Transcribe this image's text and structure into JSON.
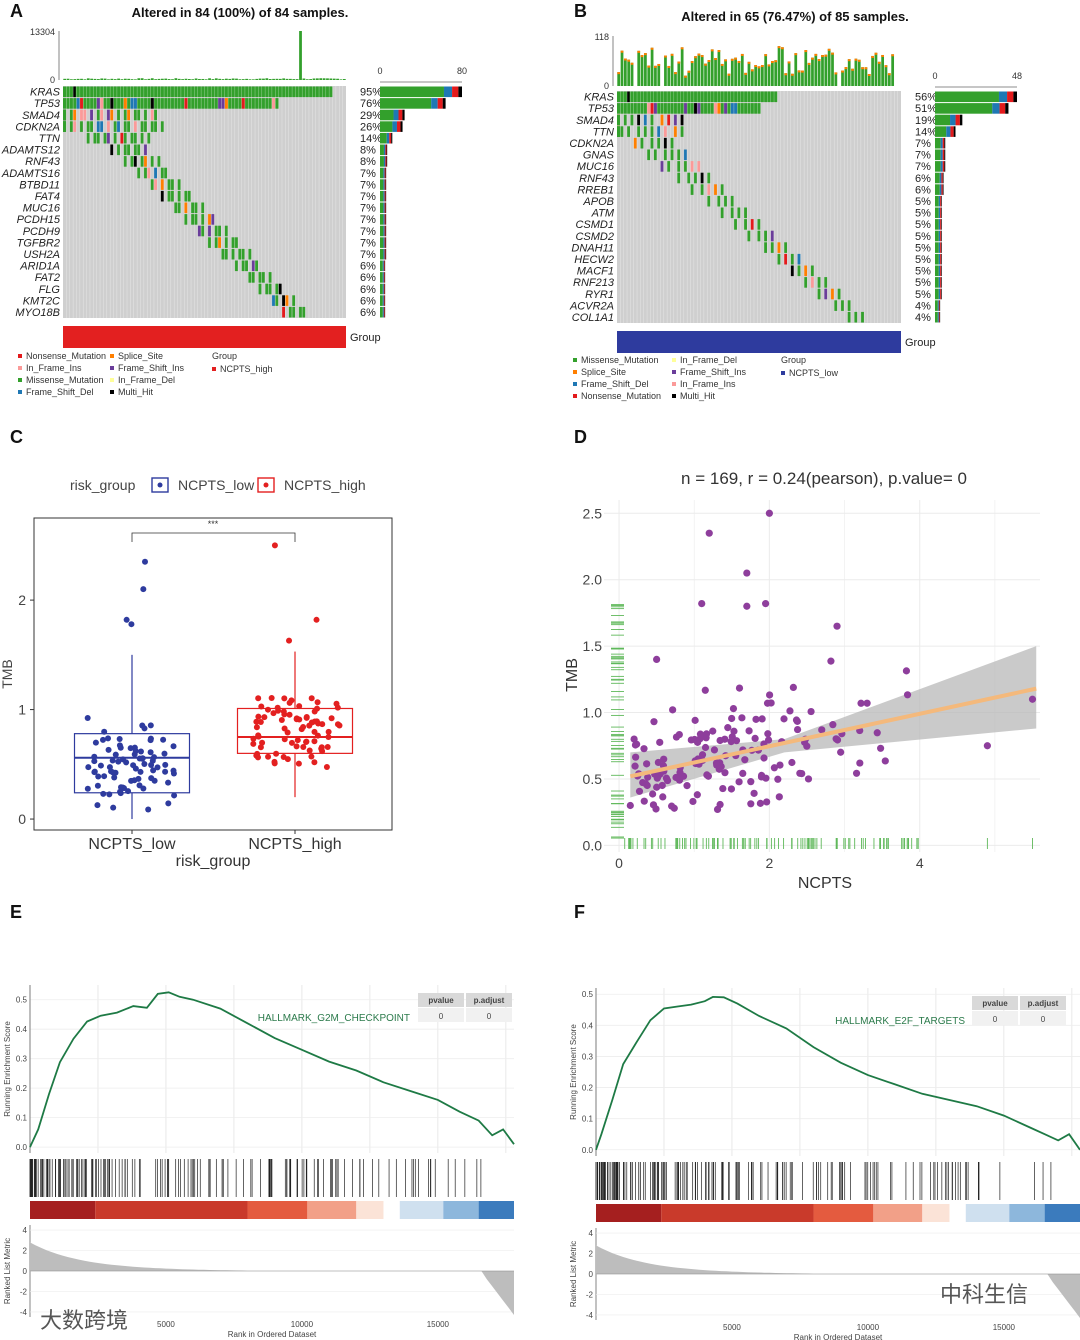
{
  "panels": {
    "A": "A",
    "B": "B",
    "C": "C",
    "D": "D",
    "E": "E",
    "F": "F"
  },
  "colors": {
    "Missense_Mutation": "#33a02c",
    "Nonsense_Mutation": "#e31a1c",
    "Frame_Shift_Del": "#1f78b4",
    "Frame_Shift_Ins": "#6a3d9a",
    "In_Frame_Del": "#ffff99",
    "In_Frame_Ins": "#fb9a99",
    "Splice_Site": "#ff7f00",
    "Multi_Hit": "#000000",
    "NCPTS_high": "#e32020",
    "NCPTS_low": "#2e3b9e",
    "grey": "#cfcfcf",
    "green_curve": "#1e7a45"
  },
  "chart_data": [
    {
      "id": "A",
      "type": "oncoplot",
      "title": "Altered in 84 (100%) of 84 samples.",
      "tmb_axis": [
        "13304",
        "0"
      ],
      "freq_axis": [
        "0",
        "80"
      ],
      "genes": [
        {
          "gene": "KRAS",
          "pct": "95%",
          "freq": 80
        },
        {
          "gene": "TP53",
          "pct": "76%",
          "freq": 64
        },
        {
          "gene": "SMAD4",
          "pct": "29%",
          "freq": 24
        },
        {
          "gene": "CDKN2A",
          "pct": "26%",
          "freq": 22
        },
        {
          "gene": "TTN",
          "pct": "14%",
          "freq": 12
        },
        {
          "gene": "ADAMTS12",
          "pct": "8%",
          "freq": 7
        },
        {
          "gene": "RNF43",
          "pct": "8%",
          "freq": 7
        },
        {
          "gene": "ADAMTS16",
          "pct": "7%",
          "freq": 6
        },
        {
          "gene": "BTBD11",
          "pct": "7%",
          "freq": 6
        },
        {
          "gene": "FAT4",
          "pct": "7%",
          "freq": 6
        },
        {
          "gene": "MUC16",
          "pct": "7%",
          "freq": 6
        },
        {
          "gene": "PCDH15",
          "pct": "7%",
          "freq": 6
        },
        {
          "gene": "PCDH9",
          "pct": "7%",
          "freq": 6
        },
        {
          "gene": "TGFBR2",
          "pct": "7%",
          "freq": 6
        },
        {
          "gene": "USH2A",
          "pct": "7%",
          "freq": 6
        },
        {
          "gene": "ARID1A",
          "pct": "6%",
          "freq": 5
        },
        {
          "gene": "FAT2",
          "pct": "6%",
          "freq": 5
        },
        {
          "gene": "FLG",
          "pct": "6%",
          "freq": 5
        },
        {
          "gene": "KMT2C",
          "pct": "6%",
          "freq": 5
        },
        {
          "gene": "MYO18B",
          "pct": "6%",
          "freq": 5
        }
      ],
      "group_label": "Group",
      "legend": [
        [
          "Nonsense_Mutation",
          "Splice_Site"
        ],
        [
          "In_Frame_Ins",
          "Frame_Shift_Ins"
        ],
        [
          "Missense_Mutation",
          "In_Frame_Del"
        ],
        [
          "Frame_Shift_Del",
          "Multi_Hit"
        ]
      ],
      "group_legend_title": "Group",
      "group_legend": "NCPTS_high"
    },
    {
      "id": "B",
      "type": "oncoplot",
      "title": "Altered in 65 (76.47%) of 85 samples.",
      "tmb_axis": [
        "118",
        "0"
      ],
      "freq_axis": [
        "0",
        "48"
      ],
      "genes": [
        {
          "gene": "KRAS",
          "pct": "56%",
          "freq": 48
        },
        {
          "gene": "TP53",
          "pct": "51%",
          "freq": 43
        },
        {
          "gene": "SMAD4",
          "pct": "19%",
          "freq": 16
        },
        {
          "gene": "TTN",
          "pct": "14%",
          "freq": 12
        },
        {
          "gene": "CDKN2A",
          "pct": "7%",
          "freq": 6
        },
        {
          "gene": "GNAS",
          "pct": "7%",
          "freq": 6
        },
        {
          "gene": "MUC16",
          "pct": "7%",
          "freq": 6
        },
        {
          "gene": "RNF43",
          "pct": "6%",
          "freq": 5
        },
        {
          "gene": "RREB1",
          "pct": "6%",
          "freq": 5
        },
        {
          "gene": "APOB",
          "pct": "5%",
          "freq": 4
        },
        {
          "gene": "ATM",
          "pct": "5%",
          "freq": 4
        },
        {
          "gene": "CSMD1",
          "pct": "5%",
          "freq": 4
        },
        {
          "gene": "CSMD2",
          "pct": "5%",
          "freq": 4
        },
        {
          "gene": "DNAH11",
          "pct": "5%",
          "freq": 4
        },
        {
          "gene": "HECW2",
          "pct": "5%",
          "freq": 4
        },
        {
          "gene": "MACF1",
          "pct": "5%",
          "freq": 4
        },
        {
          "gene": "RNF213",
          "pct": "5%",
          "freq": 4
        },
        {
          "gene": "RYR1",
          "pct": "5%",
          "freq": 4
        },
        {
          "gene": "ACVR2A",
          "pct": "4%",
          "freq": 3
        },
        {
          "gene": "COL1A1",
          "pct": "4%",
          "freq": 3
        }
      ],
      "group_label": "Group",
      "legend": [
        [
          "Missense_Mutation",
          "In_Frame_Del"
        ],
        [
          "Splice_Site",
          "Frame_Shift_Ins"
        ],
        [
          "Frame_Shift_Del",
          "In_Frame_Ins"
        ],
        [
          "Nonsense_Mutation",
          "Multi_Hit"
        ]
      ],
      "group_legend_title": "Group",
      "group_legend": "NCPTS_low"
    },
    {
      "id": "C",
      "type": "box",
      "legend_title": "risk_group",
      "categories": [
        "NCPTS_low",
        "NCPTS_high"
      ],
      "xlabel": "risk_group",
      "ylabel": "TMB",
      "yticks": [
        "0",
        "1",
        "2"
      ],
      "ylim": [
        -0.1,
        2.75
      ],
      "significance": "***",
      "boxes": [
        {
          "name": "NCPTS_low",
          "q1": 0.24,
          "median": 0.56,
          "q3": 0.78,
          "lo": 0.0,
          "hi": 1.5
        },
        {
          "name": "NCPTS_high",
          "q1": 0.6,
          "median": 0.75,
          "q3": 1.01,
          "lo": 0.2,
          "hi": 1.53
        }
      ],
      "outliers": [
        {
          "group": "NCPTS_low",
          "y": 2.35
        },
        {
          "group": "NCPTS_low",
          "y": 2.1
        },
        {
          "group": "NCPTS_low",
          "y": 1.82
        },
        {
          "group": "NCPTS_low",
          "y": 1.78
        },
        {
          "group": "NCPTS_high",
          "y": 2.5
        },
        {
          "group": "NCPTS_high",
          "y": 1.82
        },
        {
          "group": "NCPTS_high",
          "y": 1.63
        }
      ]
    },
    {
      "id": "D",
      "type": "scatter",
      "title": "n = 169, r = 0.24(pearson), p.value= 0",
      "xlabel": "NCPTS",
      "ylabel": "TMB",
      "xticks": [
        "0",
        "2",
        "4"
      ],
      "yticks": [
        "0.0",
        "0.5",
        "1.0",
        "1.5",
        "2.0",
        "2.5"
      ],
      "xlim": [
        -0.2,
        5.6
      ],
      "ylim": [
        -0.05,
        2.6
      ],
      "fit": {
        "x0": 0.15,
        "y0": 0.52,
        "x1": 5.55,
        "y1": 1.18
      },
      "highlight_points": [
        {
          "x": 1.2,
          "y": 2.35
        },
        {
          "x": 2.0,
          "y": 2.5
        },
        {
          "x": 1.7,
          "y": 2.05
        },
        {
          "x": 1.7,
          "y": 1.8
        },
        {
          "x": 1.95,
          "y": 1.82
        },
        {
          "x": 1.1,
          "y": 1.82
        },
        {
          "x": 0.5,
          "y": 1.4
        },
        {
          "x": 2.9,
          "y": 1.65
        },
        {
          "x": 5.5,
          "y": 1.1
        },
        {
          "x": 4.9,
          "y": 0.75
        },
        {
          "x": 3.3,
          "y": 1.07
        },
        {
          "x": 0.15,
          "y": 0.3
        }
      ]
    },
    {
      "id": "E",
      "type": "line",
      "label": "HALLMARK_G2M_CHECKPOINT",
      "ylabel": "Running Enrichment Score",
      "ylabel2": "Ranked List Metric",
      "xlabel": "Rank in Ordered Dataset",
      "yticks": [
        "0.0",
        "0.1",
        "0.2",
        "0.3",
        "0.4",
        "0.5"
      ],
      "xticks": [
        "5000",
        "10000",
        "15000"
      ],
      "ranked_yticks": [
        "4",
        "2",
        "0",
        "-2",
        "-4"
      ],
      "xlim": [
        0,
        17800
      ],
      "ylim": [
        -0.02,
        0.55
      ],
      "table": {
        "headers": [
          "pvalue",
          "p.adjust"
        ],
        "values": [
          "0",
          "0"
        ]
      },
      "curve_x": [
        0,
        300,
        700,
        1100,
        1600,
        2100,
        2600,
        3200,
        3800,
        4300,
        4700,
        5100,
        5500,
        6000,
        7000,
        8000,
        9000,
        10000,
        11000,
        12000,
        13000,
        14000,
        15000,
        15800,
        16500,
        17000,
        17400,
        17800
      ],
      "curve_y": [
        0.0,
        0.06,
        0.18,
        0.28,
        0.36,
        0.42,
        0.44,
        0.45,
        0.47,
        0.48,
        0.51,
        0.52,
        0.51,
        0.5,
        0.47,
        0.42,
        0.37,
        0.33,
        0.29,
        0.26,
        0.22,
        0.19,
        0.16,
        0.12,
        0.09,
        0.04,
        0.06,
        0.01
      ]
    },
    {
      "id": "F",
      "type": "line",
      "label": "HALLMARK_E2F_TARGETS",
      "ylabel": "Running Enrichment Score",
      "ylabel2": "Ranked List Metric",
      "xlabel": "Rank in Ordered Dataset",
      "yticks": [
        "0.0",
        "0.1",
        "0.2",
        "0.3",
        "0.4",
        "0.5"
      ],
      "xticks": [
        "5000",
        "10000",
        "15000"
      ],
      "ranked_yticks": [
        "4",
        "2",
        "0",
        "-2",
        "-4"
      ],
      "xlim": [
        0,
        17800
      ],
      "ylim": [
        -0.02,
        0.52
      ],
      "table": {
        "headers": [
          "pvalue",
          "p.adjust"
        ],
        "values": [
          "0",
          "0"
        ]
      },
      "curve_x": [
        0,
        200,
        600,
        1000,
        1500,
        2000,
        2500,
        3000,
        3500,
        4000,
        4300,
        4700,
        5200,
        6000,
        7000,
        8000,
        9000,
        10000,
        11000,
        12000,
        13000,
        14000,
        15000,
        16000,
        16500,
        17000,
        17400,
        17800
      ],
      "curve_y": [
        0.0,
        0.05,
        0.16,
        0.27,
        0.35,
        0.42,
        0.45,
        0.46,
        0.47,
        0.48,
        0.49,
        0.48,
        0.47,
        0.43,
        0.39,
        0.33,
        0.28,
        0.24,
        0.21,
        0.18,
        0.16,
        0.14,
        0.11,
        0.07,
        0.05,
        0.03,
        0.05,
        0.0
      ]
    }
  ],
  "watermarks": {
    "left": "大数跨境",
    "right": "中科生信"
  }
}
